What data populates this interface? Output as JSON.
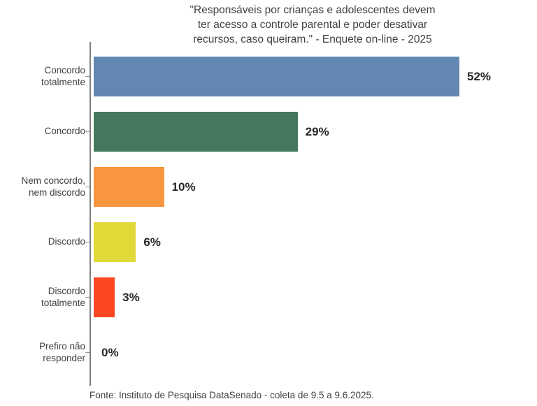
{
  "chart_data": {
    "type": "bar",
    "orientation": "horizontal",
    "title": "\"Responsáveis por crianças e adolescentes devem\nter acesso a controle parental e poder desativar\nrecursos, caso queiram.\" - Enquete on-line - 2025",
    "categories": [
      "Concordo totalmente",
      "Concordo",
      "Nem concordo, nem discordo",
      "Discordo",
      "Discordo totalmente",
      "Prefiro não responder"
    ],
    "values": [
      52,
      29,
      10,
      6,
      3,
      0
    ],
    "value_labels": [
      "52%",
      "29%",
      "10%",
      "6%",
      "3%",
      "0%"
    ],
    "colors": [
      "#6288b2",
      "#45795f",
      "#f8953e",
      "#e2d837",
      "#fb4722",
      null
    ],
    "xlim": [
      0,
      52
    ],
    "grid": false,
    "legend": "none",
    "source": "Fonte: Instituto de Pesquisa DataSenado - coleta de 9.5 a 9.6.2025."
  },
  "style_colors": {
    "title_text": "#404040",
    "category_text": "#404040",
    "value_text": "#262626",
    "axis_line": "#7f7f7f",
    "tick": "#999999"
  }
}
